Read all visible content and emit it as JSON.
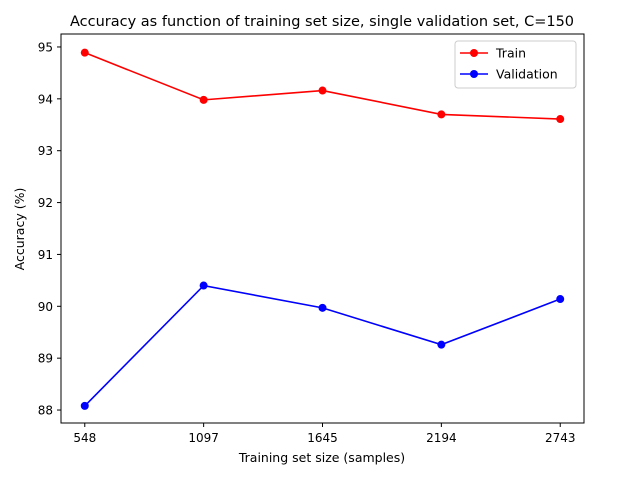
{
  "chart_data": {
    "type": "line",
    "title": "Accuracy as function of training set size, single validation set, C=150",
    "xlabel": "Training set size (samples)",
    "ylabel": "Accuracy (%)",
    "x": [
      548,
      1097,
      1645,
      2194,
      2743
    ],
    "xticks": [
      "548",
      "1097",
      "1645",
      "2194",
      "2743"
    ],
    "yticks": [
      88,
      89,
      90,
      91,
      92,
      93,
      94,
      95
    ],
    "ylim": [
      87.75,
      95.25
    ],
    "grid": false,
    "legend_position": "top-right",
    "series": [
      {
        "name": "Train",
        "color": "#ff0000",
        "values": [
          94.89,
          93.98,
          94.16,
          93.7,
          93.61
        ]
      },
      {
        "name": "Validation",
        "color": "#0000ff",
        "values": [
          88.08,
          90.4,
          89.97,
          89.26,
          90.14
        ]
      }
    ]
  }
}
